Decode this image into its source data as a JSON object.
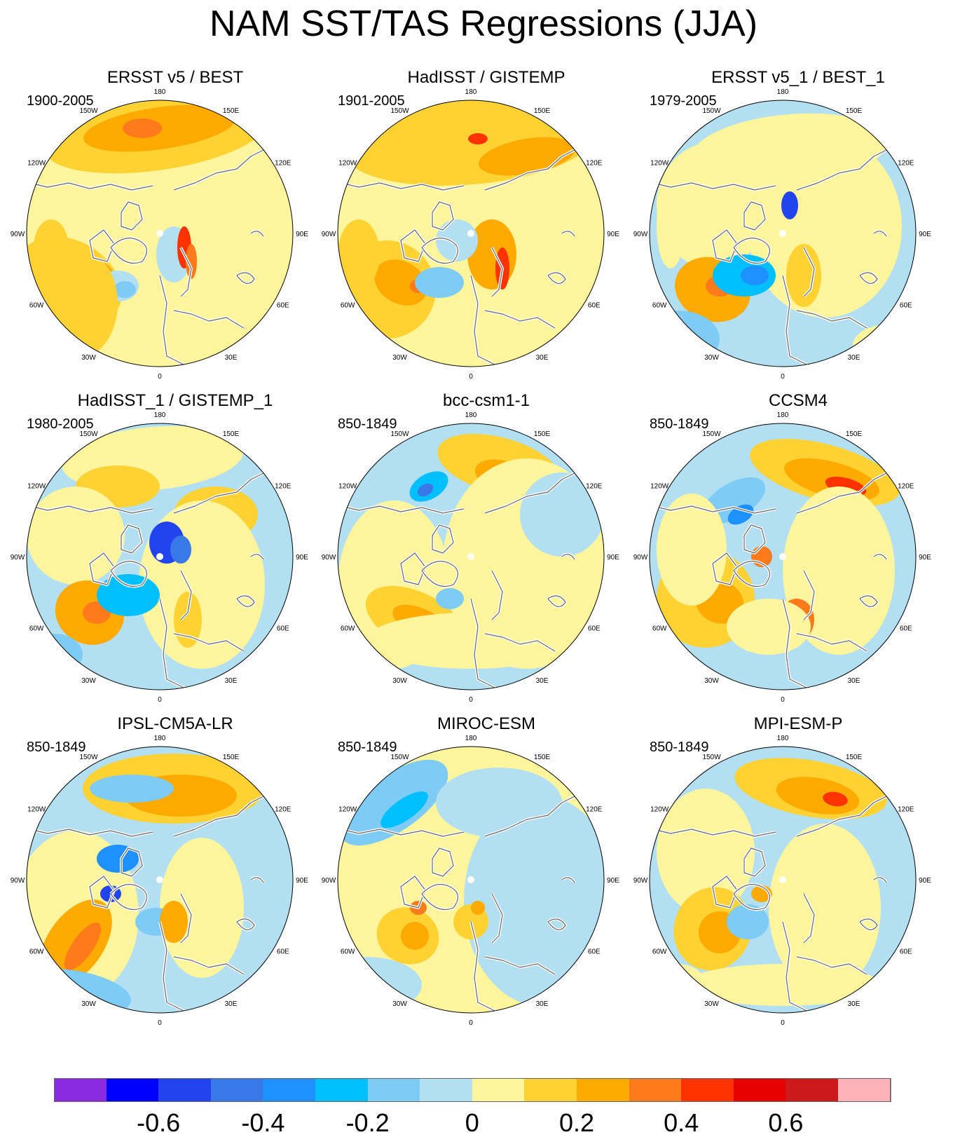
{
  "title": "NAM SST/TAS Regressions (JJA)",
  "lon_labels": [
    "180",
    "150E",
    "120E",
    "90E",
    "60E",
    "30E",
    "0",
    "30W",
    "60W",
    "90W",
    "120W",
    "150W"
  ],
  "panels": [
    {
      "title": "ERSST v5 / BEST",
      "period": "1900-2005",
      "pattern": "strong_warm"
    },
    {
      "title": "HadISST / GISTEMP",
      "period": "1901-2005",
      "pattern": "strong_warm_b"
    },
    {
      "title": "ERSST v5_1 / BEST_1",
      "period": "1979-2005",
      "pattern": "cool_mix"
    },
    {
      "title": "HadISST_1 / GISTEMP_1",
      "period": "1980-2005",
      "pattern": "cool_mix_b"
    },
    {
      "title": "bcc-csm1-1",
      "period": "850-1849",
      "pattern": "model_a"
    },
    {
      "title": "CCSM4",
      "period": "850-1849",
      "pattern": "model_b"
    },
    {
      "title": "IPSL-CM5A-LR",
      "period": "850-1849",
      "pattern": "model_c"
    },
    {
      "title": "MIROC-ESM",
      "period": "850-1849",
      "pattern": "model_d"
    },
    {
      "title": "MPI-ESM-P",
      "period": "850-1849",
      "pattern": "model_e"
    }
  ],
  "colorbar": {
    "colors": [
      "#8a2be2",
      "#0000ff",
      "#2244ee",
      "#3a78e8",
      "#1e90ff",
      "#00bfff",
      "#7ecbf5",
      "#b2dff2",
      "#fff59d",
      "#ffd233",
      "#ffaa00",
      "#ff7a1a",
      "#ff3300",
      "#e60000",
      "#cc1a1a",
      "#ffb3b8"
    ],
    "labels": [
      "-0.6",
      "-0.4",
      "-0.2",
      "0",
      "0.2",
      "0.4",
      "0.6"
    ],
    "label_boundaries": [
      2,
      4,
      6,
      8,
      10,
      12,
      14
    ]
  }
}
